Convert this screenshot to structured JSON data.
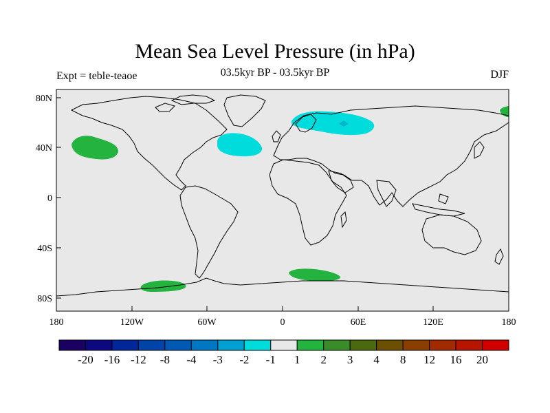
{
  "title": "Mean Sea Level Pressure (in hPa)",
  "subtitle": "03.5kyr BP - 03.5kyr BP",
  "left_label": "Expt = teble-teaoe",
  "right_label": "DJF",
  "colors": {
    "background": "#e8e8e8",
    "neg_light": "#00dcdc",
    "pos_light": "#23b33e",
    "coast": "#000000"
  },
  "y_ticks": [
    "80N",
    "40N",
    "0",
    "40S",
    "80S"
  ],
  "x_ticks": [
    "180",
    "120W",
    "60W",
    "0",
    "60E",
    "120E",
    "180"
  ],
  "colorbar": {
    "colors": [
      "#1a0060",
      "#0d0880",
      "#002799",
      "#0044a8",
      "#0059b3",
      "#0077c2",
      "#00a0d3",
      "#00dcdc",
      "#e8e8e8",
      "#23b33e",
      "#3a8c28",
      "#4b6a10",
      "#6a5000",
      "#8a3f00",
      "#a12a00",
      "#b61500",
      "#d10000"
    ],
    "labels": [
      "-20",
      "-16",
      "-12",
      "-8",
      "-4",
      "-3",
      "-2",
      "-1",
      "1",
      "2",
      "3",
      "4",
      "8",
      "12",
      "16",
      "20"
    ]
  },
  "anomalies": [
    {
      "name": "north-pacific-positive",
      "lon": -146,
      "lat": 43,
      "sign": "positive"
    },
    {
      "name": "north-atlantic-negative",
      "lon": -40,
      "lat": 42,
      "sign": "negative"
    },
    {
      "name": "northern-eurasia-negative",
      "lon": 40,
      "lat": 60,
      "sign": "negative"
    },
    {
      "name": "southern-pacific-positive",
      "lon": -96,
      "lat": -71,
      "sign": "positive"
    },
    {
      "name": "southern-indian-positive",
      "lon": 25,
      "lat": -62,
      "sign": "positive"
    },
    {
      "name": "far-east-siberia-positive",
      "lon": 178,
      "lat": 68,
      "sign": "positive"
    }
  ]
}
